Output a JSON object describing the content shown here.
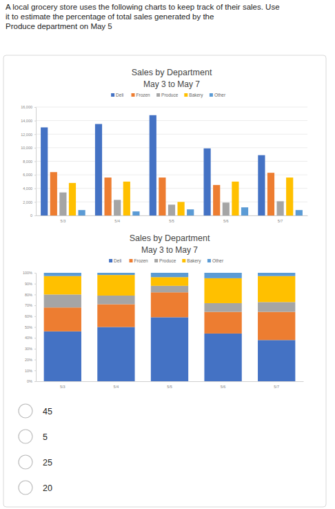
{
  "question": [
    "A local grocery store uses the following charts to keep track of their sales. Use",
    "it to estimate the percentage of total sales generated by the",
    "Produce department on May 5"
  ],
  "choices": [
    45,
    5,
    25,
    20
  ],
  "chart_data": [
    {
      "type": "bar",
      "title": "Sales by Department",
      "subtitle": "May 3 to May 7",
      "categories": [
        "5/3",
        "5/4",
        "5/5",
        "5/6",
        "5/7"
      ],
      "series": [
        {
          "name": "Deli",
          "color": "#4472c4",
          "values": [
            13000,
            13500,
            14800,
            9900,
            8900
          ]
        },
        {
          "name": "Frozen",
          "color": "#ed7d31",
          "values": [
            6400,
            5600,
            5600,
            4500,
            6300
          ]
        },
        {
          "name": "Produce",
          "color": "#a5a5a5",
          "values": [
            3400,
            2300,
            1600,
            1900,
            2100
          ]
        },
        {
          "name": "Bakery",
          "color": "#ffc000",
          "values": [
            4800,
            5000,
            2000,
            5000,
            5600
          ]
        },
        {
          "name": "Other",
          "color": "#5b9bd5",
          "values": [
            800,
            600,
            900,
            1200,
            800
          ]
        }
      ],
      "ylim": [
        0,
        16000
      ],
      "yticks": [
        0,
        {
          "value": 2000,
          "label": "2,000"
        },
        {
          "value": 4000,
          "label": "4,000"
        },
        {
          "value": 6000,
          "label": "6,000"
        },
        {
          "value": 8000,
          "label": "8,000"
        },
        {
          "value": 10000,
          "label": "10,000"
        },
        {
          "value": 12000,
          "label": "12,000"
        },
        {
          "value": 14000,
          "label": "14,000"
        },
        {
          "value": 16000,
          "label": "16,000"
        }
      ],
      "grid": true,
      "legend": "top",
      "stacked": false
    },
    {
      "type": "bar",
      "title": "Sales by Department",
      "subtitle": "May 3 to May 7",
      "categories": [
        "5/3",
        "5/4",
        "5/5",
        "5/6",
        "5/7"
      ],
      "series": [
        {
          "name": "Deli",
          "color": "#4472c4",
          "values": [
            46,
            50,
            59,
            44,
            38
          ]
        },
        {
          "name": "Frozen",
          "color": "#ed7d31",
          "values": [
            22,
            21,
            23,
            20,
            26
          ]
        },
        {
          "name": "Produce",
          "color": "#a5a5a5",
          "values": [
            12,
            8,
            6,
            8,
            9
          ]
        },
        {
          "name": "Bakery",
          "color": "#ffc000",
          "values": [
            17,
            19,
            8,
            23,
            24
          ]
        },
        {
          "name": "Other",
          "color": "#5b9bd5",
          "values": [
            3,
            2,
            4,
            5,
            3
          ]
        }
      ],
      "ylim": [
        0,
        100
      ],
      "yticks": [
        {
          "value": 0,
          "label": "0%"
        },
        {
          "value": 10,
          "label": "10%"
        },
        {
          "value": 20,
          "label": "20%"
        },
        {
          "value": 30,
          "label": "30%"
        },
        {
          "value": 40,
          "label": "40%"
        },
        {
          "value": 50,
          "label": "50%"
        },
        {
          "value": 60,
          "label": "60%"
        },
        {
          "value": 70,
          "label": "70%"
        },
        {
          "value": 80,
          "label": "80%"
        },
        {
          "value": 90,
          "label": "90%"
        },
        {
          "value": 100,
          "label": "100%"
        }
      ],
      "grid": false,
      "legend": "top",
      "stacked": true
    }
  ]
}
